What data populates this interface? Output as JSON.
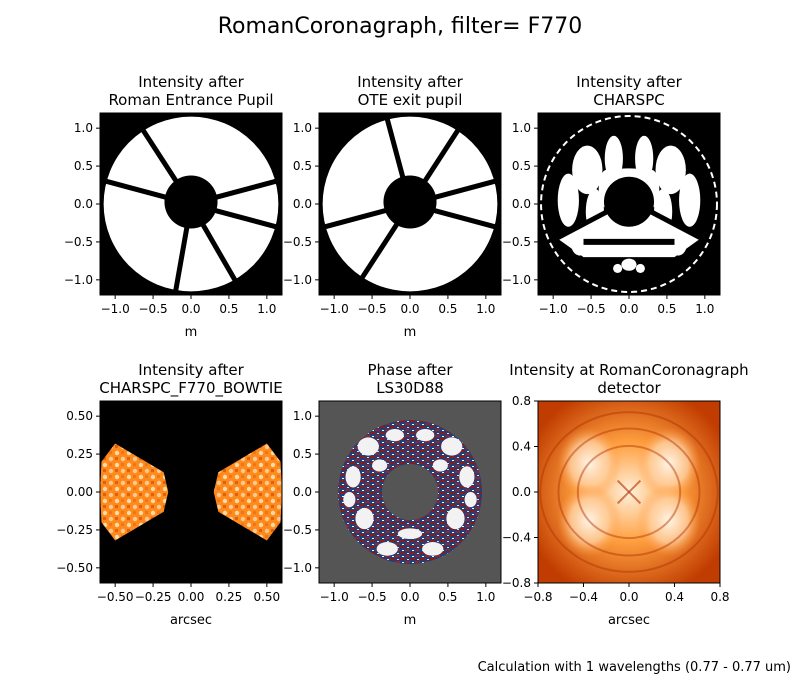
{
  "figure": {
    "suptitle": "RomanCoronagraph, filter= F770",
    "footer": "Calculation with 1 wavelengths (0.77 - 0.77 um)"
  },
  "colors": {
    "background": "#ffffff",
    "mask_black": "#000000",
    "mask_white": "#ffffff",
    "phase_gray": "#555555",
    "phase_light": "#f2f2f2",
    "phase_red": "#8b1a1a",
    "phase_blue": "#1f3f7a",
    "heat_dark": "#b03000",
    "heat_mid": "#ff7a10",
    "heat_light": "#fff0dc"
  },
  "chart_data": [
    {
      "type": "heatmap",
      "title": "Intensity after\nRoman Entrance Pupil",
      "xlabel": "m",
      "ylabel": "",
      "xlim": [
        -1.2,
        1.2
      ],
      "ylim": [
        -1.2,
        1.2
      ],
      "xticks": [
        -1.0,
        -0.5,
        0.0,
        0.5,
        1.0
      ],
      "xticklabels": [
        "−1.0",
        "−0.5",
        "0.0",
        "0.5",
        "1.0"
      ],
      "yticks": [
        -1.0,
        -0.5,
        0.0,
        0.5,
        1.0
      ],
      "yticklabels": [
        "−1.0",
        "−0.5",
        "0.0",
        "0.5",
        "1.0"
      ],
      "content": "pupil",
      "pupil": {
        "outer_radius": 1.2,
        "inner_radius": 0.35,
        "strut_angles_deg": [
          15,
          123,
          165,
          260,
          300,
          345
        ]
      },
      "colormap": "gray",
      "grid": false
    },
    {
      "type": "heatmap",
      "title": "Intensity after\nOTE exit pupil",
      "xlabel": "m",
      "ylabel": "",
      "xlim": [
        -1.2,
        1.2
      ],
      "ylim": [
        -1.2,
        1.2
      ],
      "xticks": [
        -1.0,
        -0.5,
        0.0,
        0.5,
        1.0
      ],
      "xticklabels": [
        "−1.0",
        "−0.5",
        "0.0",
        "0.5",
        "1.0"
      ],
      "yticks": [
        -1.0,
        -0.5,
        0.0,
        0.5,
        1.0
      ],
      "yticklabels": [
        "−1.0",
        "−0.5",
        "0.0",
        "0.5",
        "1.0"
      ],
      "content": "pupil",
      "pupil": {
        "outer_radius": 1.2,
        "inner_radius": 0.35,
        "strut_angles_deg": [
          15,
          57,
          105,
          195,
          237,
          345
        ]
      },
      "colormap": "gray",
      "grid": false
    },
    {
      "type": "heatmap",
      "title": "Intensity after\nCHARSPC",
      "xlabel": "",
      "ylabel": "",
      "xlim": [
        -1.2,
        1.2
      ],
      "ylim": [
        -1.2,
        1.2
      ],
      "xticks": [
        -1.0,
        -0.5,
        0.0,
        0.5,
        1.0
      ],
      "xticklabels": [
        "−1.0",
        "−0.5",
        "0.0",
        "0.5",
        "1.0"
      ],
      "yticks": [
        -1.0,
        -0.5,
        0.0,
        0.5,
        1.0
      ],
      "yticklabels": [
        "−1.0",
        "−0.5",
        "0.0",
        "0.5",
        "1.0"
      ],
      "content": "shaped-pupil-mask",
      "colormap": "gray",
      "grid": false
    },
    {
      "type": "heatmap",
      "title": "Intensity after\nCHARSPC_F770_BOWTIE",
      "xlabel": "arcsec",
      "ylabel": "",
      "xlim": [
        -0.6,
        0.6
      ],
      "ylim": [
        -0.6,
        0.6
      ],
      "xticks": [
        -0.5,
        -0.25,
        0.0,
        0.25,
        0.5
      ],
      "xticklabels": [
        "−0.50",
        "−0.25",
        "0.00",
        "0.25",
        "0.50"
      ],
      "yticks": [
        -0.5,
        -0.25,
        0.0,
        0.25,
        0.5
      ],
      "yticklabels": [
        "−0.50",
        "−0.25",
        "0.00",
        "0.25",
        "0.50"
      ],
      "content": "bowtie",
      "colormap": "orange",
      "grid": false
    },
    {
      "type": "heatmap",
      "title": "Phase after\nLS30D88",
      "xlabel": "m",
      "ylabel": "",
      "xlim": [
        -1.2,
        1.2
      ],
      "ylim": [
        -1.2,
        1.2
      ],
      "xticks": [
        -1.0,
        -0.5,
        0.0,
        0.5,
        1.0
      ],
      "xticklabels": [
        "−1.0",
        "−0.5",
        "0.0",
        "0.5",
        "1.0"
      ],
      "yticks": [
        -1.0,
        -0.5,
        0.0,
        0.5,
        1.0
      ],
      "yticklabels": [
        "−1.0",
        "−0.5",
        "0.0",
        "0.5",
        "1.0"
      ],
      "content": "lyot-phase",
      "colormap": "phase",
      "grid": false
    },
    {
      "type": "heatmap",
      "title": "Intensity at RomanCoronagraph\ndetector",
      "xlabel": "arcsec",
      "ylabel": "",
      "xlim": [
        -0.8,
        0.8
      ],
      "ylim": [
        -0.8,
        0.8
      ],
      "xticks": [
        -0.8,
        -0.4,
        0.0,
        0.4,
        0.8
      ],
      "xticklabels": [
        "−0.8",
        "−0.4",
        "0.0",
        "0.4",
        "0.8"
      ],
      "yticks": [
        -0.8,
        -0.4,
        0.0,
        0.4,
        0.8
      ],
      "yticklabels": [
        "−0.8",
        "−0.4",
        "0.0",
        "0.4",
        "0.8"
      ],
      "content": "psf",
      "colormap": "orange",
      "grid": false
    }
  ]
}
